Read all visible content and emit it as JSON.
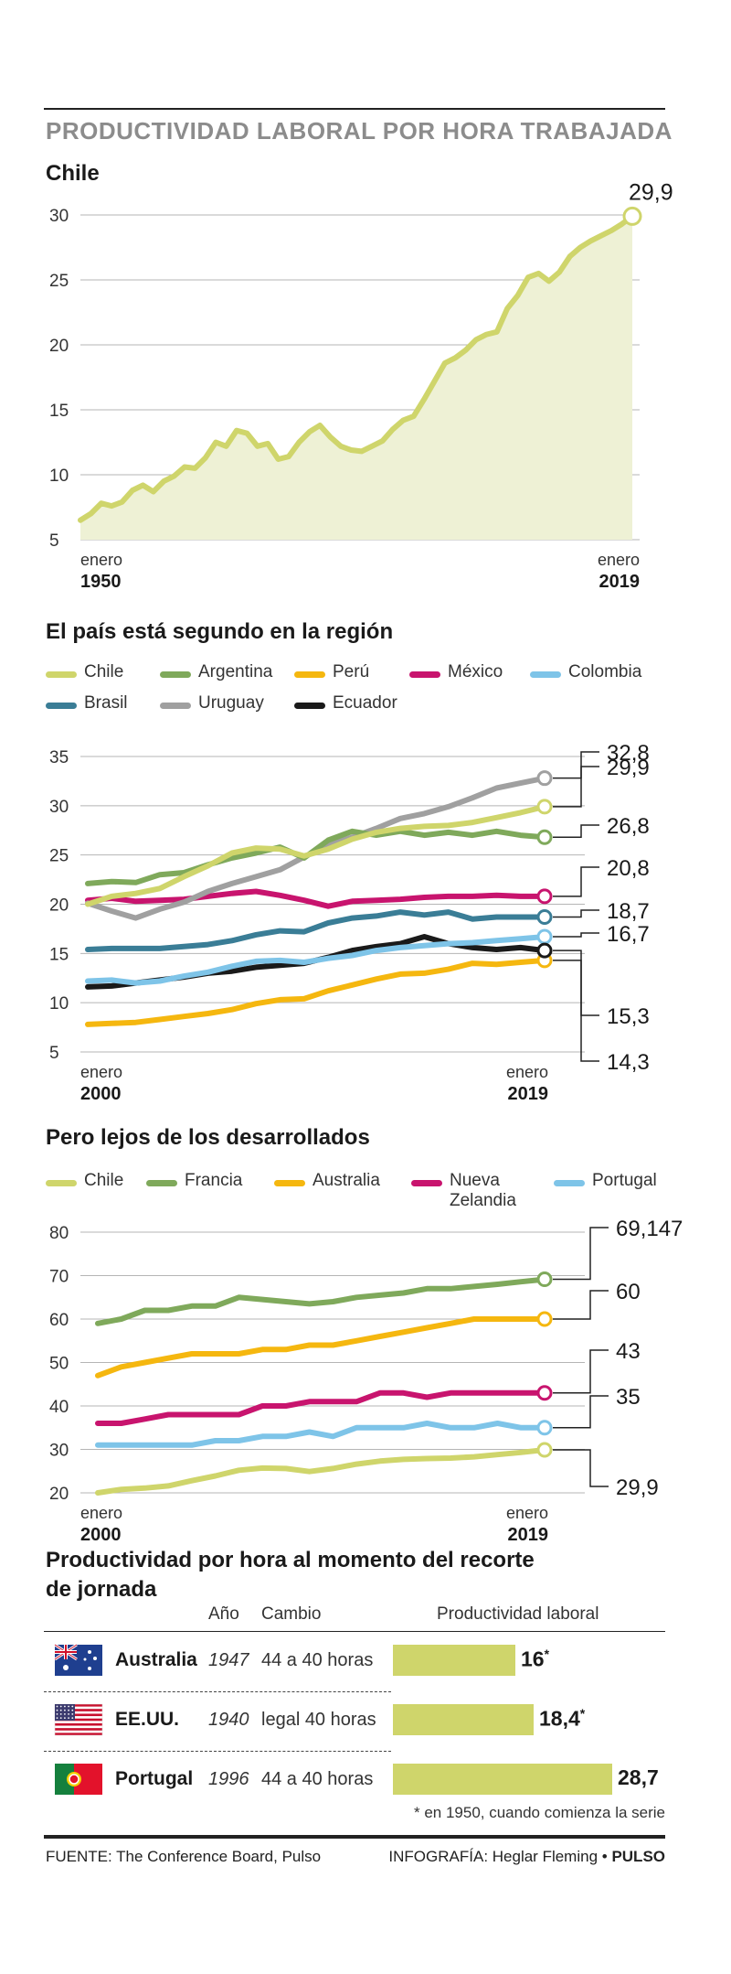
{
  "header": {
    "title": "PRODUCTIVIDAD LABORAL POR HORA TRABAJADA"
  },
  "chart1": {
    "title": "Chile",
    "x_start": "enero",
    "x_start_year": "1950",
    "x_end": "enero",
    "x_end_year": "2019"
  },
  "chart2": {
    "title": "El país está segundo en la región",
    "x_start": "enero",
    "x_start_year": "2000",
    "x_end": "enero",
    "x_end_year": "2019"
  },
  "chart3": {
    "title": "Pero lejos de los desarrollados",
    "x_start": "enero",
    "x_start_year": "2000",
    "x_end": "enero",
    "x_end_year": "2019"
  },
  "table": {
    "title_line1": "Productividad por hora al momento del recorte",
    "title_line2": "de jornada",
    "col_year": "Año",
    "col_change": "Cambio",
    "col_prod": "Productividad laboral",
    "max_value": 28.7,
    "rows": [
      {
        "country": "Australia",
        "year": "1947",
        "change": "44 a 40 horas",
        "value": 16,
        "value_label": "16",
        "mark": "*",
        "flag": "australia-flag-icon"
      },
      {
        "country": "EE.UU.",
        "year": "1940",
        "change": "legal 40 horas",
        "value": 18.4,
        "value_label": "18,4",
        "mark": "*",
        "flag": "usa-flag-icon"
      },
      {
        "country": "Portugal",
        "year": "1996",
        "change": "44 a 40 horas",
        "value": 28.7,
        "value_label": "28,7",
        "mark": "",
        "flag": "portugal-flag-icon"
      }
    ],
    "bar_color": "#cfd56b"
  },
  "footnote": "* en 1950, cuando comienza la serie",
  "footer": {
    "source": "FUENTE: The Conference Board, Pulso",
    "credit_prefix": "INFOGRAFÍA: Heglar Fleming •",
    "credit_brand": "PULSO"
  },
  "chart_data": [
    {
      "type": "area",
      "title": "Chile",
      "x_range": [
        "enero 1950",
        "enero 2019"
      ],
      "ylim": [
        5,
        30
      ],
      "yticks": [
        5,
        10,
        15,
        20,
        25,
        30
      ],
      "grid": true,
      "color": "#cfd56b",
      "fill": "#eef1d5",
      "end_label": "29,9",
      "series": [
        {
          "values": [
            6.5,
            7.0,
            7.8,
            7.6,
            7.9,
            8.8,
            9.2,
            8.7,
            9.5,
            9.9,
            10.6,
            10.5,
            11.3,
            12.5,
            12.2,
            13.4,
            13.2,
            12.2,
            12.4,
            11.2,
            11.4,
            12.5,
            13.3,
            13.8,
            12.9,
            12.2,
            11.9,
            11.8,
            12.2,
            12.6,
            13.5,
            14.2,
            14.5,
            15.8,
            17.2,
            18.6,
            19.0,
            19.6,
            20.4,
            20.8,
            21.0,
            22.8,
            23.8,
            25.2,
            25.5,
            24.9,
            25.6,
            26.8,
            27.5,
            28.0,
            28.4,
            28.8,
            29.3,
            29.9
          ]
        }
      ]
    },
    {
      "type": "line",
      "title": "El país está segundo en la región",
      "x": [
        2000,
        2001,
        2002,
        2003,
        2004,
        2005,
        2006,
        2007,
        2008,
        2009,
        2010,
        2011,
        2012,
        2013,
        2014,
        2015,
        2016,
        2017,
        2018,
        2019
      ],
      "ylim": [
        5,
        35
      ],
      "yticks": [
        5,
        10,
        15,
        20,
        25,
        30,
        35
      ],
      "grid": true,
      "series": [
        {
          "name": "Chile",
          "color": "#cfd56b",
          "values": [
            20.0,
            20.8,
            21.1,
            21.6,
            22.8,
            23.9,
            25.2,
            25.7,
            25.6,
            24.9,
            25.6,
            26.6,
            27.3,
            27.7,
            27.9,
            28.0,
            28.3,
            28.8,
            29.3,
            29.9
          ],
          "end_label": "29,9"
        },
        {
          "name": "Argentina",
          "color": "#7fa95b",
          "values": [
            22.1,
            22.3,
            22.2,
            23.0,
            23.2,
            24.0,
            24.7,
            25.2,
            25.8,
            24.7,
            26.5,
            27.4,
            27.0,
            27.4,
            27.0,
            27.3,
            27.0,
            27.4,
            27.0,
            26.8
          ],
          "end_label": "26,8"
        },
        {
          "name": "Perú",
          "color": "#f5b70f",
          "values": [
            7.8,
            7.9,
            8.0,
            8.3,
            8.6,
            8.9,
            9.3,
            9.9,
            10.3,
            10.4,
            11.2,
            11.8,
            12.4,
            12.9,
            13.0,
            13.4,
            14.0,
            13.9,
            14.1,
            14.3
          ],
          "end_label": "14,3"
        },
        {
          "name": "México",
          "color": "#c8146e",
          "values": [
            20.4,
            20.6,
            20.3,
            20.4,
            20.5,
            20.8,
            21.1,
            21.3,
            20.9,
            20.4,
            19.8,
            20.3,
            20.4,
            20.5,
            20.7,
            20.8,
            20.8,
            20.9,
            20.8,
            20.8
          ],
          "end_label": "20,8"
        },
        {
          "name": "Colombia",
          "color": "#7ec4e8",
          "values": [
            12.2,
            12.3,
            12.0,
            12.2,
            12.7,
            13.1,
            13.7,
            14.2,
            14.3,
            14.1,
            14.5,
            14.8,
            15.3,
            15.6,
            15.8,
            16.0,
            16.1,
            16.3,
            16.5,
            16.7
          ],
          "end_label": "16,7"
        },
        {
          "name": "Brasil",
          "color": "#3a7d96",
          "values": [
            15.4,
            15.5,
            15.5,
            15.5,
            15.7,
            15.9,
            16.3,
            16.9,
            17.3,
            17.2,
            18.1,
            18.6,
            18.8,
            19.2,
            18.9,
            19.2,
            18.5,
            18.7,
            18.7,
            18.7
          ],
          "end_label": "18,7"
        },
        {
          "name": "Uruguay",
          "color": "#a0a0a0",
          "values": [
            20.1,
            19.3,
            18.6,
            19.5,
            20.2,
            21.3,
            22.1,
            22.8,
            23.5,
            24.8,
            26.0,
            26.8,
            27.7,
            28.7,
            29.2,
            29.9,
            30.8,
            31.8,
            32.3,
            32.8
          ],
          "end_label": "32,8"
        },
        {
          "name": "Ecuador",
          "color": "#1a1a1a",
          "values": [
            11.6,
            11.7,
            12.0,
            12.3,
            12.6,
            13.0,
            13.2,
            13.6,
            13.8,
            14.0,
            14.6,
            15.3,
            15.7,
            16.0,
            16.7,
            16.0,
            15.6,
            15.4,
            15.6,
            15.3
          ],
          "end_label": "15,3"
        }
      ]
    },
    {
      "type": "line",
      "title": "Pero lejos de los desarrollados",
      "x": [
        2000,
        2001,
        2002,
        2003,
        2004,
        2005,
        2006,
        2007,
        2008,
        2009,
        2010,
        2011,
        2012,
        2013,
        2014,
        2015,
        2016,
        2017,
        2018,
        2019
      ],
      "ylim": [
        20,
        80
      ],
      "yticks": [
        20,
        30,
        40,
        50,
        60,
        70,
        80
      ],
      "grid": true,
      "series": [
        {
          "name": "Chile",
          "color": "#cfd56b",
          "values": [
            20.0,
            20.8,
            21.1,
            21.6,
            22.8,
            23.9,
            25.2,
            25.7,
            25.6,
            24.9,
            25.6,
            26.6,
            27.3,
            27.7,
            27.9,
            28.0,
            28.3,
            28.8,
            29.3,
            29.9
          ],
          "end_label": "29,9"
        },
        {
          "name": "Francia",
          "color": "#7fa95b",
          "values": [
            59,
            60,
            62,
            62,
            63,
            63,
            65,
            64.5,
            64,
            63.5,
            64,
            65,
            65.5,
            66,
            67,
            67,
            67.5,
            68,
            68.6,
            69.147
          ],
          "end_label": "69,147"
        },
        {
          "name": "Australia",
          "color": "#f5b70f",
          "values": [
            47,
            49,
            50,
            51,
            52,
            52,
            52,
            53,
            53,
            54,
            54,
            55,
            56,
            57,
            58,
            59,
            60,
            60,
            60,
            60
          ],
          "end_label": "60"
        },
        {
          "name": "Nueva Zelandia",
          "color": "#c8146e",
          "values": [
            36,
            36,
            37,
            38,
            38,
            38,
            38,
            40,
            40,
            41,
            41,
            41,
            43,
            43,
            42,
            43,
            43,
            43,
            43,
            43
          ],
          "end_label": "43"
        },
        {
          "name": "Portugal",
          "color": "#7ec4e8",
          "values": [
            31,
            31,
            31,
            31,
            31,
            32,
            32,
            33,
            33,
            34,
            33,
            35,
            35,
            35,
            36,
            35,
            35,
            36,
            35,
            35
          ],
          "end_label": "35"
        }
      ]
    }
  ]
}
